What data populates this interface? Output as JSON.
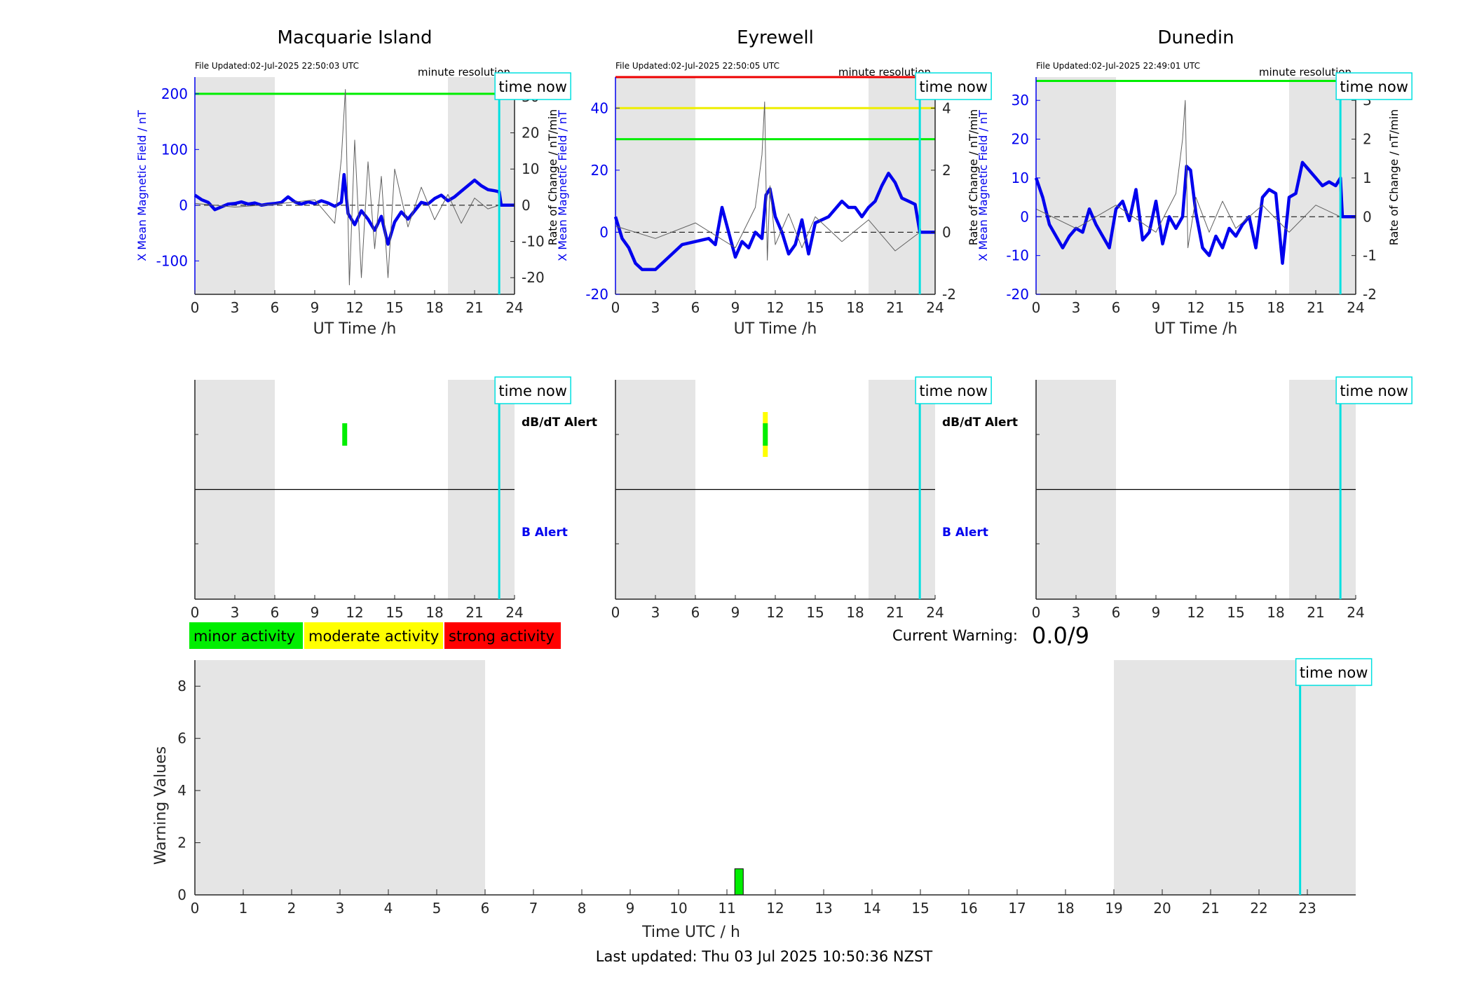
{
  "chart_data": [
    {
      "type": "line",
      "title": "Macquarie Island",
      "file_updated": "File Updated:02-Jul-2025 22:50:03 UTC",
      "resolution": "minute resolution",
      "time_now_label": "time now",
      "xlabel": "UT Time /h",
      "ylabel_left": "X Mean Magnetic Field / nT",
      "ylabel_right": "Rate of Change / nT/min",
      "xlim": [
        0,
        24
      ],
      "xticks": [
        0,
        3,
        6,
        9,
        12,
        15,
        18,
        21,
        24
      ],
      "ylim_left": [
        -160,
        230
      ],
      "yticks_left": [
        -100,
        0,
        100,
        200
      ],
      "ylim_right": [
        -24.6,
        35.4
      ],
      "yticks_right": [
        -20,
        -10,
        0,
        10,
        20,
        30
      ],
      "night_shading": [
        [
          0,
          6
        ],
        [
          19,
          24
        ]
      ],
      "time_now": 22.85,
      "thresholds": [
        {
          "value": 200,
          "color": "#00ee00"
        }
      ],
      "series": [
        {
          "name": "X Mean Magnetic Field",
          "axis": "left",
          "color": "#0000ee",
          "x": [
            0,
            0.5,
            1,
            1.5,
            2,
            2.5,
            3,
            3.5,
            4,
            4.5,
            5,
            5.5,
            6,
            6.5,
            7,
            7.5,
            8,
            8.5,
            9,
            9.5,
            10,
            10.5,
            11,
            11.2,
            11.5,
            12,
            12.5,
            13,
            13.5,
            14,
            14.5,
            15,
            15.5,
            16,
            16.5,
            17,
            17.5,
            18,
            18.5,
            19,
            19.5,
            20,
            20.5,
            21,
            21.5,
            22,
            22.5,
            22.85,
            23,
            24
          ],
          "y": [
            18,
            10,
            5,
            -8,
            -3,
            2,
            3,
            6,
            2,
            4,
            0,
            2,
            3,
            5,
            15,
            6,
            2,
            6,
            3,
            8,
            4,
            -2,
            5,
            55,
            -15,
            -35,
            -10,
            -25,
            -45,
            -20,
            -70,
            -30,
            -12,
            -25,
            -10,
            5,
            2,
            12,
            18,
            8,
            15,
            25,
            35,
            45,
            35,
            28,
            26,
            24,
            0,
            0
          ]
        },
        {
          "name": "Rate of Change",
          "axis": "right",
          "color": "#606060",
          "x": [
            0,
            3,
            6,
            9,
            10.5,
            11,
            11.3,
            11.6,
            12,
            12.5,
            13,
            13.5,
            14,
            14.5,
            15,
            16,
            17,
            18,
            19,
            20,
            21,
            22,
            22.85
          ],
          "y": [
            0.5,
            -0.5,
            0.3,
            1.5,
            -5,
            13,
            32,
            -22,
            18,
            -20,
            12,
            -12,
            8,
            -20,
            10,
            -6,
            5,
            -4,
            3,
            -5,
            2,
            -1,
            0
          ]
        }
      ]
    },
    {
      "type": "line",
      "title": "Eyrewell",
      "file_updated": "File Updated:02-Jul-2025 22:50:05 UTC",
      "resolution": "minute resolution",
      "time_now_label": "time now",
      "xlabel": "UT Time /h",
      "ylabel_left": "X Mean Magnetic Field / nT",
      "ylabel_right": "Rate of Change / nT/min",
      "xlim": [
        0,
        24
      ],
      "xticks": [
        0,
        3,
        6,
        9,
        12,
        15,
        18,
        21,
        24
      ],
      "ylim_left": [
        -20,
        50
      ],
      "yticks_left": [
        -20,
        0,
        20,
        40
      ],
      "ylim_right": [
        -2,
        5
      ],
      "yticks_right": [
        -2,
        0,
        2,
        4
      ],
      "night_shading": [
        [
          0,
          6
        ],
        [
          19,
          24
        ]
      ],
      "time_now": 22.85,
      "thresholds": [
        {
          "value": 50,
          "color": "#ee0000"
        },
        {
          "value": 40,
          "color": "#eeee00"
        },
        {
          "value": 30,
          "color": "#00ee00"
        }
      ],
      "series": [
        {
          "name": "X Mean Magnetic Field",
          "axis": "left",
          "color": "#0000ee",
          "x": [
            0,
            0.5,
            1,
            1.5,
            2,
            2.5,
            3,
            4,
            5,
            6,
            7,
            7.5,
            8,
            8.5,
            9,
            9.5,
            10,
            10.5,
            11,
            11.3,
            11.6,
            12,
            12.5,
            13,
            13.5,
            14,
            14.5,
            15,
            16,
            17,
            17.5,
            18,
            18.5,
            19,
            19.5,
            20,
            20.5,
            21,
            21.5,
            22,
            22.5,
            22.85,
            23,
            24
          ],
          "y": [
            5,
            -2,
            -5,
            -10,
            -12,
            -12,
            -12,
            -8,
            -4,
            -3,
            -2,
            -4,
            8,
            0,
            -8,
            -3,
            -5,
            0,
            -2,
            12,
            14,
            5,
            0,
            -7,
            -4,
            4,
            -7,
            3,
            5,
            10,
            8,
            8,
            5,
            8,
            10,
            15,
            19,
            16,
            11,
            10,
            9,
            0,
            0,
            0
          ]
        },
        {
          "name": "Rate of Change",
          "axis": "right",
          "color": "#606060",
          "x": [
            0,
            3,
            6,
            9,
            10.5,
            11,
            11.2,
            11.4,
            11.6,
            12,
            13,
            14,
            15,
            17,
            19,
            21,
            22.85
          ],
          "y": [
            0.2,
            -0.2,
            0.3,
            -0.5,
            0.8,
            2.5,
            4.2,
            -0.9,
            1.5,
            -0.4,
            0.6,
            -0.5,
            0.5,
            -0.3,
            0.4,
            -0.6,
            0
          ]
        }
      ]
    },
    {
      "type": "line",
      "title": "Dunedin",
      "file_updated": "File Updated:02-Jul-2025 22:49:01 UTC",
      "resolution": "minute resolution",
      "time_now_label": "time now",
      "xlabel": "UT Time /h",
      "ylabel_left": "X Mean Magnetic Field / nT",
      "ylabel_right": "Rate of Change / nT/min",
      "xlim": [
        0,
        24
      ],
      "xticks": [
        0,
        3,
        6,
        9,
        12,
        15,
        18,
        21,
        24
      ],
      "ylim_left": [
        -20,
        36
      ],
      "yticks_left": [
        -20,
        -10,
        0,
        10,
        20,
        30
      ],
      "ylim_right": [
        -2,
        3.6
      ],
      "yticks_right": [
        -2,
        -1,
        0,
        1,
        2,
        3
      ],
      "night_shading": [
        [
          0,
          6
        ],
        [
          19,
          24
        ]
      ],
      "time_now": 22.85,
      "thresholds": [
        {
          "value": 35,
          "color": "#00ee00"
        }
      ],
      "series": [
        {
          "name": "X Mean Magnetic Field",
          "axis": "left",
          "color": "#0000ee",
          "x": [
            0,
            0.5,
            1,
            1.5,
            2,
            2.5,
            3,
            3.5,
            4,
            4.5,
            5,
            5.5,
            6,
            6.5,
            7,
            7.5,
            8,
            8.5,
            9,
            9.5,
            10,
            10.5,
            11,
            11.3,
            11.6,
            12,
            12.5,
            13,
            13.5,
            14,
            14.5,
            15,
            15.5,
            16,
            16.5,
            17,
            17.5,
            18,
            18.5,
            19,
            19.5,
            20,
            20.5,
            21,
            21.5,
            22,
            22.5,
            22.85,
            23,
            24
          ],
          "y": [
            10,
            5,
            -2,
            -5,
            -8,
            -5,
            -3,
            -4,
            2,
            -2,
            -5,
            -8,
            2,
            4,
            -1,
            7,
            -6,
            -4,
            4,
            -7,
            0,
            -3,
            0,
            13,
            12,
            1,
            -8,
            -10,
            -5,
            -8,
            -3,
            -5,
            -2,
            0,
            -8,
            5,
            7,
            6,
            -12,
            5,
            6,
            14,
            12,
            10,
            8,
            9,
            8,
            10,
            0,
            0
          ]
        },
        {
          "name": "Rate of Change",
          "axis": "right",
          "color": "#606060",
          "x": [
            0,
            3,
            6,
            9,
            10.5,
            11,
            11.2,
            11.4,
            12,
            13,
            14,
            15,
            17,
            19,
            21,
            22.85
          ],
          "y": [
            0.2,
            -0.3,
            0.3,
            -0.4,
            0.6,
            2.0,
            3.0,
            -0.8,
            0.5,
            -0.4,
            0.4,
            -0.3,
            0.3,
            -0.4,
            0.3,
            0
          ]
        }
      ]
    },
    {
      "type": "bar",
      "panel": "alert",
      "station": "Macquarie Island",
      "time_now_label": "time now",
      "xlim": [
        0,
        24
      ],
      "xticks": [
        0,
        3,
        6,
        9,
        12,
        15,
        18,
        21,
        24
      ],
      "night_shading": [
        [
          0,
          6
        ],
        [
          19,
          24
        ]
      ],
      "time_now": 22.85,
      "label_dbdt": "dB/dT Alert",
      "label_b": "B Alert",
      "dbdt_alerts": [
        {
          "x": 11.25,
          "level": 1
        }
      ],
      "b_alerts": []
    },
    {
      "type": "bar",
      "panel": "alert",
      "station": "Eyrewell",
      "time_now_label": "time now",
      "xlim": [
        0,
        24
      ],
      "xticks": [
        0,
        3,
        6,
        9,
        12,
        15,
        18,
        21,
        24
      ],
      "night_shading": [
        [
          0,
          6
        ],
        [
          19,
          24
        ]
      ],
      "time_now": 22.85,
      "label_dbdt": "dB/dT Alert",
      "label_b": "B Alert",
      "dbdt_alerts": [
        {
          "x": 11.25,
          "level": 2
        }
      ],
      "b_alerts": []
    },
    {
      "type": "bar",
      "panel": "alert",
      "station": "Dunedin",
      "time_now_label": "time now",
      "xlim": [
        0,
        24
      ],
      "xticks": [
        0,
        3,
        6,
        9,
        12,
        15,
        18,
        21,
        24
      ],
      "night_shading": [
        [
          0,
          6
        ],
        [
          19,
          24
        ]
      ],
      "time_now": 22.85,
      "dbdt_alerts": [],
      "b_alerts": []
    },
    {
      "type": "bar",
      "panel": "warning",
      "xlabel": "Time UTC / h",
      "ylabel": "Warning Values",
      "time_now_label": "time now",
      "xlim": [
        0,
        24
      ],
      "xticks": [
        0,
        1,
        2,
        3,
        4,
        5,
        6,
        7,
        8,
        9,
        10,
        11,
        12,
        13,
        14,
        15,
        16,
        17,
        18,
        19,
        20,
        21,
        22,
        23
      ],
      "ylim": [
        0,
        9
      ],
      "yticks": [
        0,
        2,
        4,
        6,
        8
      ],
      "night_shading": [
        [
          0,
          6
        ],
        [
          19,
          24
        ]
      ],
      "time_now": 22.85,
      "bars": [
        {
          "x": 11.25,
          "value": 1
        }
      ]
    }
  ],
  "legend": [
    {
      "label": "minor activity",
      "color": "#00ee00"
    },
    {
      "label": "moderate activity",
      "color": "#ffff00"
    },
    {
      "label": "strong activity",
      "color": "#ff0000"
    }
  ],
  "current_warning": {
    "label": "Current Warning:",
    "value": "0.0/9"
  },
  "footer": "Last updated: Thu 03 Jul 2025 10:50:36 NZST",
  "colors": {
    "night": "#e5e5e5",
    "now_line": "#00e0e0",
    "field": "#0000ee",
    "rate": "#606060",
    "threshold_green": "#00ee00",
    "threshold_yellow": "#eeee00",
    "threshold_red": "#ee0000"
  }
}
